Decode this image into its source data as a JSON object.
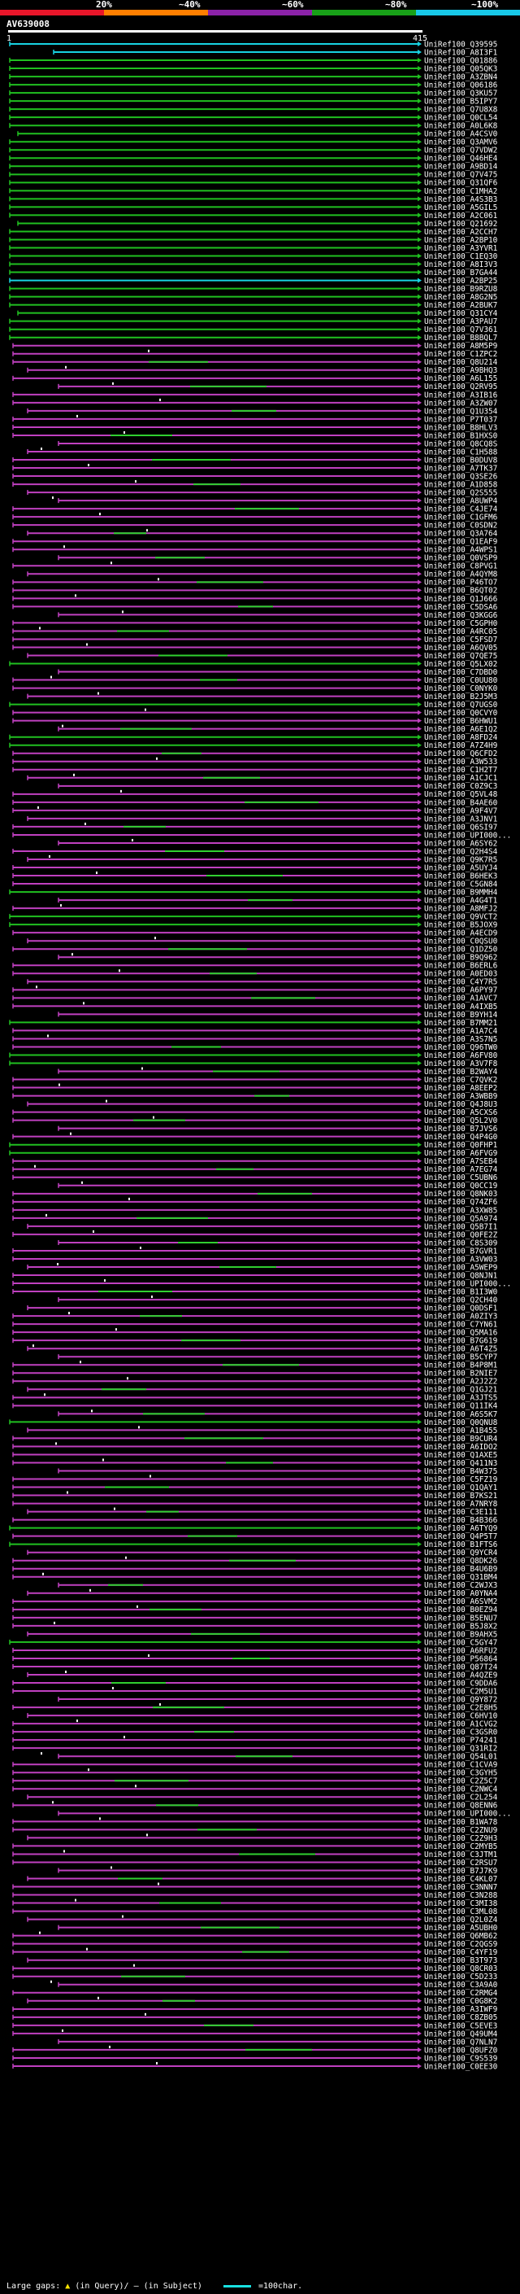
{
  "scale_labels": [
    "20%",
    "~40%",
    "~60%",
    "~80%",
    "~100%"
  ],
  "scale_colors": [
    "#e8162a",
    "#ff7f00",
    "#8b22a8",
    "#18a018",
    "#18c8e8"
  ],
  "query": {
    "title": "AV639008",
    "start": "1",
    "end": "415"
  },
  "colors": {
    "cyan": "#18d2e2",
    "green": "#20c020",
    "magenta": "#c040c0",
    "segment_green": "#30d030"
  },
  "hits": [
    {
      "label": "UniRef100_Q39595",
      "color": "cyan"
    },
    {
      "label": "UniRef100_A8I3F1",
      "color": "cyan"
    },
    {
      "label": "UniRef100_Q01886",
      "color": "green"
    },
    {
      "label": "UniRef100_Q05QK3",
      "color": "green"
    },
    {
      "label": "UniRef100_A3ZBN4",
      "color": "green"
    },
    {
      "label": "UniRef100_Q06186",
      "color": "green"
    },
    {
      "label": "UniRef100_Q3KU57",
      "color": "green"
    },
    {
      "label": "UniRef100_B5IPY7",
      "color": "green"
    },
    {
      "label": "UniRef100_Q7U8X8",
      "color": "green"
    },
    {
      "label": "UniRef100_Q0CL54",
      "color": "green"
    },
    {
      "label": "UniRef100_A0L6K8",
      "color": "green"
    },
    {
      "label": "UniRef100_A4CSV0",
      "color": "green"
    },
    {
      "label": "UniRef100_Q3AMV6",
      "color": "green"
    },
    {
      "label": "UniRef100_Q7VDW2",
      "color": "green"
    },
    {
      "label": "UniRef100_Q46HE4",
      "color": "green"
    },
    {
      "label": "UniRef100_A9BD14",
      "color": "green"
    },
    {
      "label": "UniRef100_Q7V475",
      "color": "green"
    },
    {
      "label": "UniRef100_Q31QF6",
      "color": "green"
    },
    {
      "label": "UniRef100_C1MHA2",
      "color": "green"
    },
    {
      "label": "UniRef100_A4S3B3",
      "color": "green"
    },
    {
      "label": "UniRef100_A5GIL5",
      "color": "green"
    },
    {
      "label": "UniRef100_A2C061",
      "color": "green"
    },
    {
      "label": "UniRef100_Q21692",
      "color": "green"
    },
    {
      "label": "UniRef100_A2CCH7",
      "color": "green"
    },
    {
      "label": "UniRef100_A2BP10",
      "color": "green"
    },
    {
      "label": "UniRef100_A3YVR1",
      "color": "green"
    },
    {
      "label": "UniRef100_C1EQ30",
      "color": "green"
    },
    {
      "label": "UniRef100_A8I3V3",
      "color": "green"
    },
    {
      "label": "UniRef100_B7GA44",
      "color": "green"
    },
    {
      "label": "UniRef100_A2BP25",
      "color": "cyan"
    },
    {
      "label": "UniRef100_B9RZU8",
      "color": "green"
    },
    {
      "label": "UniRef100_A8G2N5",
      "color": "green"
    },
    {
      "label": "UniRef100_A2BUK7",
      "color": "green"
    },
    {
      "label": "UniRef100_Q31CY4",
      "color": "green"
    },
    {
      "label": "UniRef100_A3PAU7",
      "color": "green"
    },
    {
      "label": "UniRef100_Q7V361",
      "color": "green"
    },
    {
      "label": "UniRef100_B8BQL7",
      "color": "green"
    },
    {
      "label": "UniRef100_A8M5P9",
      "color": "magenta"
    },
    {
      "label": "UniRef100_C1ZPC2",
      "color": "magenta"
    },
    {
      "label": "UniRef100_Q8U214",
      "color": "magenta"
    },
    {
      "label": "UniRef100_A9BHQ3",
      "color": "magenta"
    },
    {
      "label": "UniRef100_A6L155",
      "color": "magenta"
    },
    {
      "label": "UniRef100_Q2RV95",
      "color": "magenta"
    },
    {
      "label": "UniRef100_A3IB16",
      "color": "magenta"
    },
    {
      "label": "UniRef100_A3ZW07",
      "color": "magenta"
    },
    {
      "label": "UniRef100_Q1U354",
      "color": "magenta"
    },
    {
      "label": "UniRef100_P7T037",
      "color": "magenta"
    },
    {
      "label": "UniRef100_B8HLV3",
      "color": "magenta"
    },
    {
      "label": "UniRef100_B1HXS0",
      "color": "magenta"
    },
    {
      "label": "UniRef100_Q8CQ8S",
      "color": "magenta"
    },
    {
      "label": "UniRef100_C1H588",
      "color": "magenta"
    },
    {
      "label": "UniRef100_B0DUV8",
      "color": "magenta"
    },
    {
      "label": "UniRef100_A7TK37",
      "color": "magenta"
    },
    {
      "label": "UniRef100_Q3SE26",
      "color": "magenta"
    },
    {
      "label": "UniRef100_A1D858",
      "color": "magenta"
    },
    {
      "label": "UniRef100_Q2S555",
      "color": "magenta"
    },
    {
      "label": "UniRef100_A8UWP4",
      "color": "magenta"
    },
    {
      "label": "UniRef100_C4JE74",
      "color": "magenta"
    },
    {
      "label": "UniRef100_C1GFM6",
      "color": "magenta"
    },
    {
      "label": "UniRef100_C0SDN2",
      "color": "magenta"
    },
    {
      "label": "UniRef100_Q3A764",
      "color": "magenta"
    },
    {
      "label": "UniRef100_Q1EAF9",
      "color": "magenta"
    },
    {
      "label": "UniRef100_A4WPS1",
      "color": "magenta"
    },
    {
      "label": "UniRef100_Q0VSP9",
      "color": "magenta"
    },
    {
      "label": "UniRef100_C8PVG1",
      "color": "magenta"
    },
    {
      "label": "UniRef100_A4QYM8",
      "color": "magenta"
    },
    {
      "label": "UniRef100_P46TO7",
      "color": "magenta"
    },
    {
      "label": "UniRef100_B6QT02",
      "color": "magenta"
    },
    {
      "label": "UniRef100_Q1J666",
      "color": "magenta"
    },
    {
      "label": "UniRef100_C5DSA6",
      "color": "magenta"
    },
    {
      "label": "UniRef100_Q3KGG6",
      "color": "magenta"
    },
    {
      "label": "UniRef100_C5GPH0",
      "color": "magenta"
    },
    {
      "label": "UniRef100_A4RC05",
      "color": "magenta"
    },
    {
      "label": "UniRef100_C5FSD7",
      "color": "magenta"
    },
    {
      "label": "UniRef100_A6QV05",
      "color": "magenta"
    },
    {
      "label": "UniRef100_Q7QE75",
      "color": "magenta"
    },
    {
      "label": "UniRef100_Q5LX02",
      "color": "green"
    },
    {
      "label": "UniRef100_C7DBD0",
      "color": "magenta"
    },
    {
      "label": "UniRef100_C0UU80",
      "color": "magenta"
    },
    {
      "label": "UniRef100_C0NYK0",
      "color": "magenta"
    },
    {
      "label": "UniRef100_B2J5M3",
      "color": "magenta"
    },
    {
      "label": "UniRef100_Q7UGS0",
      "color": "green"
    },
    {
      "label": "UniRef100_Q0CVY0",
      "color": "magenta"
    },
    {
      "label": "UniRef100_B6HWU1",
      "color": "magenta"
    },
    {
      "label": "UniRef100_A6E1Q2",
      "color": "magenta"
    },
    {
      "label": "UniRef100_A8FD24",
      "color": "green"
    },
    {
      "label": "UniRef100_A7Z4H9",
      "color": "green"
    },
    {
      "label": "UniRef100_Q6CFD2",
      "color": "magenta"
    },
    {
      "label": "UniRef100_A3W533",
      "color": "magenta"
    },
    {
      "label": "UniRef100_C1H2T7",
      "color": "magenta"
    },
    {
      "label": "UniRef100_A1CJC1",
      "color": "magenta"
    },
    {
      "label": "UniRef100_C0Z9C3",
      "color": "magenta"
    },
    {
      "label": "UniRef100_Q5VL48",
      "color": "magenta"
    },
    {
      "label": "UniRef100_B4AE60",
      "color": "magenta"
    },
    {
      "label": "UniRef100_A9F4V7",
      "color": "magenta"
    },
    {
      "label": "UniRef100_A3JNV1",
      "color": "magenta"
    },
    {
      "label": "UniRef100_Q6SI97",
      "color": "magenta"
    },
    {
      "label": "UniRef100_UPI000...",
      "color": "magenta"
    },
    {
      "label": "UniRef100_A6SY62",
      "color": "magenta"
    },
    {
      "label": "UniRef100_Q2H4S4",
      "color": "magenta"
    },
    {
      "label": "UniRef100_Q9K7R5",
      "color": "magenta"
    },
    {
      "label": "UniRef100_A5UYJ4",
      "color": "magenta"
    },
    {
      "label": "UniRef100_B6HEK3",
      "color": "magenta"
    },
    {
      "label": "UniRef100_C5GN84",
      "color": "magenta"
    },
    {
      "label": "UniRef100_B9MMH4",
      "color": "green"
    },
    {
      "label": "UniRef100_A4G4T1",
      "color": "magenta"
    },
    {
      "label": "UniRef100_A8MFJ2",
      "color": "magenta"
    },
    {
      "label": "UniRef100_Q9VCT2",
      "color": "green"
    },
    {
      "label": "UniRef100_B5JOX9",
      "color": "green"
    },
    {
      "label": "UniRef100_A4ECD9",
      "color": "magenta"
    },
    {
      "label": "UniRef100_C0QSU0",
      "color": "magenta"
    },
    {
      "label": "UniRef100_Q1DZ50",
      "color": "magenta"
    },
    {
      "label": "UniRef100_B9Q962",
      "color": "magenta"
    },
    {
      "label": "UniRef100_B6ERL6",
      "color": "magenta"
    },
    {
      "label": "UniRef100_A0ED03",
      "color": "magenta"
    },
    {
      "label": "UniRef100_C4Y7R5",
      "color": "magenta"
    },
    {
      "label": "UniRef100_A6PY97",
      "color": "magenta"
    },
    {
      "label": "UniRef100_A1AVC7",
      "color": "magenta"
    },
    {
      "label": "UniRef100_A4IXB5",
      "color": "magenta"
    },
    {
      "label": "UniRef100_B9YH14",
      "color": "magenta"
    },
    {
      "label": "UniRef100_B7MM21",
      "color": "green"
    },
    {
      "label": "UniRef100_A1A7C4",
      "color": "magenta"
    },
    {
      "label": "UniRef100_A3S7N5",
      "color": "magenta"
    },
    {
      "label": "UniRef100_Q96TW0",
      "color": "magenta"
    },
    {
      "label": "UniRef100_A6FV80",
      "color": "green"
    },
    {
      "label": "UniRef100_A3V7F8",
      "color": "green"
    },
    {
      "label": "UniRef100_B2WAY4",
      "color": "magenta"
    },
    {
      "label": "UniRef100_C7QVK2",
      "color": "magenta"
    },
    {
      "label": "UniRef100_A8EEP2",
      "color": "magenta"
    },
    {
      "label": "UniRef100_A3WBB9",
      "color": "magenta"
    },
    {
      "label": "UniRef100_Q4J8U3",
      "color": "magenta"
    },
    {
      "label": "UniRef100_A5CXS6",
      "color": "magenta"
    },
    {
      "label": "UniRef100_Q5L2V0",
      "color": "magenta"
    },
    {
      "label": "UniRef100_B7JVS6",
      "color": "magenta"
    },
    {
      "label": "UniRef100_Q4P4G0",
      "color": "magenta"
    },
    {
      "label": "UniRef100_Q0FHP1",
      "color": "green"
    },
    {
      "label": "UniRef100_A6FVG9",
      "color": "green"
    },
    {
      "label": "UniRef100_A7SEB4",
      "color": "magenta"
    },
    {
      "label": "UniRef100_A7EG74",
      "color": "magenta"
    },
    {
      "label": "UniRef100_C5UBN6",
      "color": "magenta"
    },
    {
      "label": "UniRef100_Q0CC19",
      "color": "magenta"
    },
    {
      "label": "UniRef100_Q8NK03",
      "color": "magenta"
    },
    {
      "label": "UniRef100_Q74ZF6",
      "color": "magenta"
    },
    {
      "label": "UniRef100_A3XW85",
      "color": "magenta"
    },
    {
      "label": "UniRef100_Q5A974",
      "color": "magenta"
    },
    {
      "label": "UniRef100_Q5B7I1",
      "color": "magenta"
    },
    {
      "label": "UniRef100_Q0FE2Z",
      "color": "magenta"
    },
    {
      "label": "UniRef100_C8S309",
      "color": "magenta"
    },
    {
      "label": "UniRef100_B7GVR1",
      "color": "magenta"
    },
    {
      "label": "UniRef100_A3VW03",
      "color": "magenta"
    },
    {
      "label": "UniRef100_A5WEP9",
      "color": "magenta"
    },
    {
      "label": "UniRef100_Q8NJN1",
      "color": "magenta"
    },
    {
      "label": "UniRef100_UPI000...",
      "color": "magenta"
    },
    {
      "label": "UniRef100_B1I3W0",
      "color": "magenta"
    },
    {
      "label": "UniRef100_Q2CH40",
      "color": "magenta"
    },
    {
      "label": "UniRef100_Q0DSF1",
      "color": "magenta"
    },
    {
      "label": "UniRef100_A0ZIY3",
      "color": "magenta"
    },
    {
      "label": "UniRef100_C7YN61",
      "color": "magenta"
    },
    {
      "label": "UniRef100_Q5MA16",
      "color": "magenta"
    },
    {
      "label": "UniRef100_B7G619",
      "color": "magenta"
    },
    {
      "label": "UniRef100_A6T4Z5",
      "color": "magenta"
    },
    {
      "label": "UniRef100_B5CYP7",
      "color": "magenta"
    },
    {
      "label": "UniRef100_B4P8M1",
      "color": "magenta"
    },
    {
      "label": "UniRef100_B2NIE7",
      "color": "magenta"
    },
    {
      "label": "UniRef100_A2J2Z2",
      "color": "magenta"
    },
    {
      "label": "UniRef100_Q1GJ21",
      "color": "magenta"
    },
    {
      "label": "UniRef100_A3JTS5",
      "color": "magenta"
    },
    {
      "label": "UniRef100_Q11IK4",
      "color": "magenta"
    },
    {
      "label": "UniRef100_A6S5K7",
      "color": "magenta"
    },
    {
      "label": "UniRef100_Q0QNU8",
      "color": "green"
    },
    {
      "label": "UniRef100_A1B455",
      "color": "magenta"
    },
    {
      "label": "UniRef100_B9CUR4",
      "color": "magenta"
    },
    {
      "label": "UniRef100_A6IDO2",
      "color": "magenta"
    },
    {
      "label": "UniRef100_Q1AXE5",
      "color": "magenta"
    },
    {
      "label": "UniRef100_Q411N3",
      "color": "magenta"
    },
    {
      "label": "UniRef100_B4W375",
      "color": "magenta"
    },
    {
      "label": "UniRef100_C5FZ19",
      "color": "magenta"
    },
    {
      "label": "UniRef100_Q1QAY1",
      "color": "magenta"
    },
    {
      "label": "UniRef100_B7KS21",
      "color": "magenta"
    },
    {
      "label": "UniRef100_A7NRY8",
      "color": "magenta"
    },
    {
      "label": "UniRef100_C3E111",
      "color": "magenta"
    },
    {
      "label": "UniRef100_B4B366",
      "color": "magenta"
    },
    {
      "label": "UniRef100_A6TYQ9",
      "color": "green"
    },
    {
      "label": "UniRef100_Q4P5T7",
      "color": "magenta"
    },
    {
      "label": "UniRef100_B1FTS6",
      "color": "green"
    },
    {
      "label": "UniRef100_Q9YCR4",
      "color": "magenta"
    },
    {
      "label": "UniRef100_Q8DK26",
      "color": "magenta"
    },
    {
      "label": "UniRef100_B4U6B9",
      "color": "magenta"
    },
    {
      "label": "UniRef100_Q31BM4",
      "color": "magenta"
    },
    {
      "label": "UniRef100_C2WJX3",
      "color": "magenta"
    },
    {
      "label": "UniRef100_A0YNA4",
      "color": "magenta"
    },
    {
      "label": "UniRef100_A6SVM2",
      "color": "magenta"
    },
    {
      "label": "UniRef100_B0EZ94",
      "color": "magenta"
    },
    {
      "label": "UniRef100_B5ENU7",
      "color": "magenta"
    },
    {
      "label": "UniRef100_B5J8X2",
      "color": "magenta"
    },
    {
      "label": "UniRef100_B9AHX5",
      "color": "magenta"
    },
    {
      "label": "UniRef100_C5GY47",
      "color": "green"
    },
    {
      "label": "UniRef100_A6RFU2",
      "color": "magenta"
    },
    {
      "label": "UniRef100_P56864",
      "color": "magenta"
    },
    {
      "label": "UniRef100_Q87T24",
      "color": "magenta"
    },
    {
      "label": "UniRef100_A4QZE9",
      "color": "magenta"
    },
    {
      "label": "UniRef100_C9DDA6",
      "color": "magenta"
    },
    {
      "label": "UniRef100_C2M5U1",
      "color": "magenta"
    },
    {
      "label": "UniRef100_Q9Y872",
      "color": "magenta"
    },
    {
      "label": "UniRef100_C2E8H5",
      "color": "magenta"
    },
    {
      "label": "UniRef100_C6HV10",
      "color": "magenta"
    },
    {
      "label": "UniRef100_A1CVG2",
      "color": "magenta"
    },
    {
      "label": "UniRef100_C3GSR0",
      "color": "magenta"
    },
    {
      "label": "UniRef100_P74241",
      "color": "magenta"
    },
    {
      "label": "UniRef100_Q31RI2",
      "color": "magenta"
    },
    {
      "label": "UniRef100_Q54L01",
      "color": "magenta"
    },
    {
      "label": "UniRef100_C1CVA9",
      "color": "magenta"
    },
    {
      "label": "UniRef100_C3GYH5",
      "color": "magenta"
    },
    {
      "label": "UniRef100_C2Z5C7",
      "color": "magenta"
    },
    {
      "label": "UniRef100_C2NWC4",
      "color": "magenta"
    },
    {
      "label": "UniRef100_C2L254",
      "color": "magenta"
    },
    {
      "label": "UniRef100_Q8ENN6",
      "color": "magenta"
    },
    {
      "label": "UniRef100_UPI000...",
      "color": "magenta"
    },
    {
      "label": "UniRef100_B1WA78",
      "color": "magenta"
    },
    {
      "label": "UniRef100_C2ZNU9",
      "color": "magenta"
    },
    {
      "label": "UniRef100_C2Z9H3",
      "color": "magenta"
    },
    {
      "label": "UniRef100_C2MYB5",
      "color": "magenta"
    },
    {
      "label": "UniRef100_C3JTM1",
      "color": "magenta"
    },
    {
      "label": "UniRef100_C2RSU7",
      "color": "magenta"
    },
    {
      "label": "UniRef100_B7J7K9",
      "color": "magenta"
    },
    {
      "label": "UniRef100_C4KL07",
      "color": "magenta"
    },
    {
      "label": "UniRef100_C3NNN7",
      "color": "magenta"
    },
    {
      "label": "UniRef100_C3N288",
      "color": "magenta"
    },
    {
      "label": "UniRef100_C3MI38",
      "color": "magenta"
    },
    {
      "label": "UniRef100_C3ML08",
      "color": "magenta"
    },
    {
      "label": "UniRef100_Q2L0Z4",
      "color": "magenta"
    },
    {
      "label": "UniRef100_A5UBH0",
      "color": "magenta"
    },
    {
      "label": "UniRef100_Q6MB62",
      "color": "magenta"
    },
    {
      "label": "UniRef100_C2QGS9",
      "color": "magenta"
    },
    {
      "label": "UniRef100_C4YF19",
      "color": "magenta"
    },
    {
      "label": "UniRef100_B3T973",
      "color": "magenta"
    },
    {
      "label": "UniRef100_Q8CR03",
      "color": "magenta"
    },
    {
      "label": "UniRef100_C5D233",
      "color": "magenta"
    },
    {
      "label": "UniRef100_C3A9A0",
      "color": "magenta"
    },
    {
      "label": "UniRef100_C2RMG4",
      "color": "magenta"
    },
    {
      "label": "UniRef100_C0G8K2",
      "color": "magenta"
    },
    {
      "label": "UniRef100_A3IWF9",
      "color": "magenta"
    },
    {
      "label": "UniRef100_C8ZB05",
      "color": "magenta"
    },
    {
      "label": "UniRef100_C5EVE3",
      "color": "magenta"
    },
    {
      "label": "UniRef100_Q49UM4",
      "color": "magenta"
    },
    {
      "label": "UniRef100_Q7NLN7",
      "color": "magenta"
    },
    {
      "label": "UniRef100_Q8UFZ0",
      "color": "magenta"
    },
    {
      "label": "UniRef100_C9S539",
      "color": "magenta"
    },
    {
      "label": "UniRef100_C0EE30",
      "color": "magenta"
    }
  ],
  "footer": {
    "large_gaps": "Large gaps:",
    "in_query": "(in Query)/",
    "in_subject": "(in Subject)",
    "legend": "=100char."
  }
}
